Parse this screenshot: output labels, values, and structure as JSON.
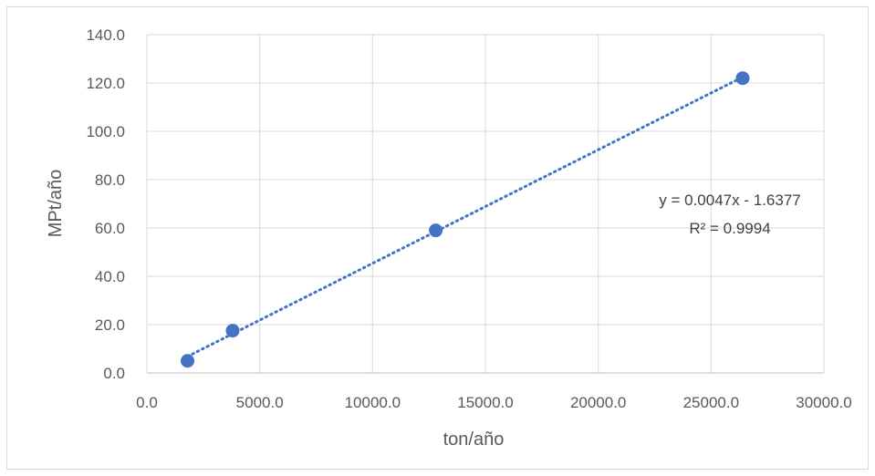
{
  "chart_data": {
    "type": "scatter",
    "title": "",
    "xlabel": "ton/año",
    "ylabel": "MPt/año",
    "xlim": [
      0,
      30000
    ],
    "ylim": [
      0,
      140
    ],
    "x_ticks": [
      0,
      5000,
      10000,
      15000,
      20000,
      25000,
      30000
    ],
    "x_tick_labels": [
      "0.0",
      "5000.0",
      "10000.0",
      "15000.0",
      "20000.0",
      "25000.0",
      "30000.0"
    ],
    "y_ticks": [
      0,
      20,
      40,
      60,
      80,
      100,
      120,
      140
    ],
    "y_tick_labels": [
      "0.0",
      "20.0",
      "40.0",
      "60.0",
      "80.0",
      "100.0",
      "120.0",
      "140.0"
    ],
    "grid": true,
    "legend": "none",
    "series": [
      {
        "x": [
          1800,
          3800,
          12800,
          26400
        ],
        "y": [
          5.0,
          17.5,
          59.0,
          122.0
        ],
        "color": "#4472c4"
      }
    ],
    "trendline": {
      "type": "linear",
      "slope": 0.0047,
      "intercept": -1.6377,
      "x_range": [
        1800,
        26400
      ],
      "color": "#4472c4",
      "style": "dotted",
      "equation_label": "y = 0.0047x - 1.6377",
      "r2_label": "R² = 0.9994"
    }
  }
}
